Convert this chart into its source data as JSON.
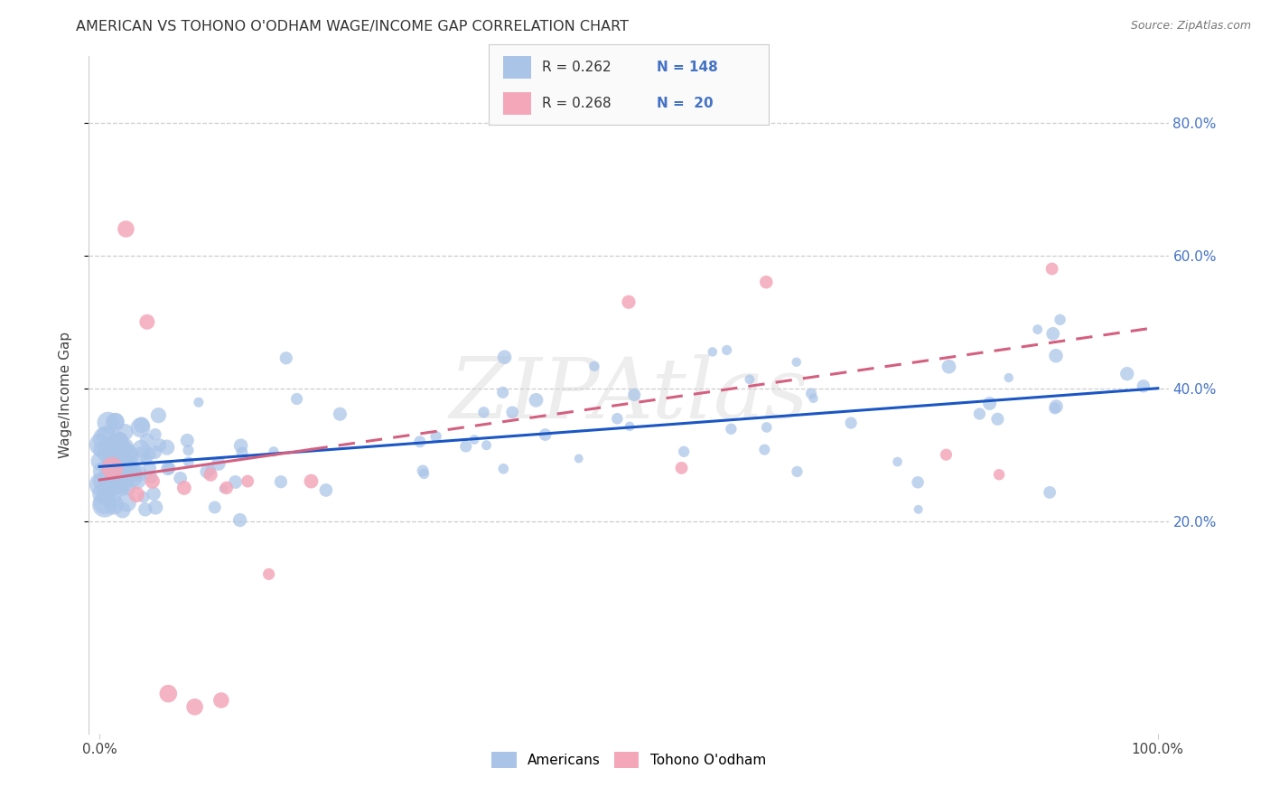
{
  "title": "AMERICAN VS TOHONO O'ODHAM WAGE/INCOME GAP CORRELATION CHART",
  "source": "Source: ZipAtlas.com",
  "ylabel": "Wage/Income Gap",
  "legend_blue_r": "0.262",
  "legend_blue_n": "148",
  "legend_pink_r": "0.268",
  "legend_pink_n": "20",
  "legend_label_blue": "Americans",
  "legend_label_pink": "Tohono O'odham",
  "blue_color": "#aac4e8",
  "pink_color": "#f4a7b9",
  "trend_blue_color": "#1a56c4",
  "trend_pink_color": "#d46080",
  "background": "#ffffff",
  "watermark": "ZIPAtlas",
  "ytick_vals": [
    0.2,
    0.4,
    0.6,
    0.8
  ],
  "ytick_labels": [
    "20.0%",
    "40.0%",
    "60.0%",
    "80.0%"
  ],
  "blue_intercept": 0.282,
  "blue_slope": 0.00118,
  "pink_intercept": 0.262,
  "pink_slope": 0.0023,
  "xlim": [
    -1,
    101
  ],
  "ylim": [
    -0.12,
    0.9
  ]
}
